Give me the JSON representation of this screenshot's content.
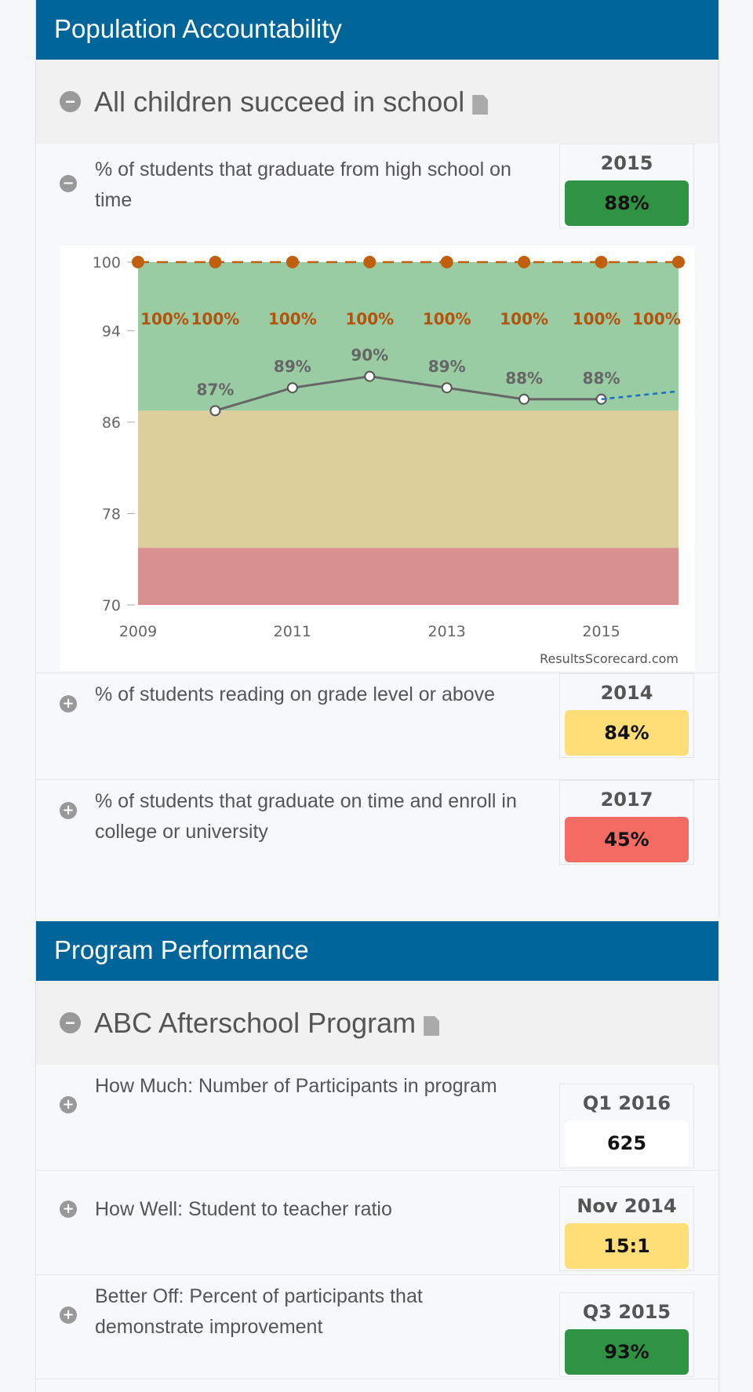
{
  "sections": [
    {
      "title": "Population Accountability",
      "group": "All children succeed in school",
      "rows": [
        {
          "label": "% of students that graduate from high school on time",
          "period": "2015",
          "value": "88%",
          "status_color": "#2e9444",
          "expanded": true
        },
        {
          "label": "% of students reading on grade level or above",
          "period": "2014",
          "value": "84%",
          "status_color": "#ffdd77",
          "expanded": false
        },
        {
          "label": "% of students that graduate on time and enroll in college or university",
          "period": "2017",
          "value": "45%",
          "status_color": "#f36b62",
          "expanded": false
        }
      ]
    },
    {
      "title": "Program Performance",
      "group": "ABC Afterschool Program",
      "rows": [
        {
          "label": "How Much: Number of Participants in program",
          "period": "Q1 2016",
          "value": "625",
          "status_color": "#ffffff",
          "expanded": false
        },
        {
          "label": "How Well: Student to teacher ratio",
          "period": "Nov 2014",
          "value": "15:1",
          "status_color": "#ffdd77",
          "expanded": false
        },
        {
          "label": "Better Off: Percent of participants that demonstrate improvement",
          "period": "Q3 2015",
          "value": "93%",
          "status_color": "#2e9444",
          "expanded": false
        }
      ]
    }
  ],
  "icons": {
    "collapse": "minus-circle-icon",
    "expand": "plus-circle-icon",
    "document": "document-icon"
  },
  "chart_data": {
    "type": "line",
    "ylim": [
      70,
      100
    ],
    "yticks": [
      70,
      78,
      86,
      94,
      100
    ],
    "xlim": [
      2009,
      2016
    ],
    "xticks": [
      2009,
      2011,
      2013,
      2015
    ],
    "bands": [
      {
        "from": 87,
        "to": 100,
        "color": "#99cca3"
      },
      {
        "from": 75,
        "to": 87,
        "color": "#dccf9c"
      },
      {
        "from": 70,
        "to": 75,
        "color": "#d99090"
      }
    ],
    "series": [
      {
        "x": [
          2010,
          2011,
          2012,
          2013,
          2014,
          2015
        ],
        "y": [
          87,
          89,
          90,
          89,
          88,
          88
        ],
        "labels": [
          "87%",
          "89%",
          "90%",
          "89%",
          "88%",
          "88%"
        ],
        "color": "#666666"
      },
      {
        "x": [
          2015,
          2016
        ],
        "y": [
          88,
          88.7
        ],
        "color": "#1f6fc0",
        "style": "dashed"
      },
      {
        "x": [
          2009,
          2010,
          2011,
          2012,
          2013,
          2014,
          2015,
          2016
        ],
        "y": [
          100,
          100,
          100,
          100,
          100,
          100,
          100,
          100
        ],
        "labels": [
          "100%",
          "100%",
          "100%",
          "100%",
          "100%",
          "100%",
          "100%",
          "100%"
        ],
        "color": "#c0600e",
        "style": "dashed"
      }
    ],
    "credit": "ResultsScorecard.com"
  }
}
